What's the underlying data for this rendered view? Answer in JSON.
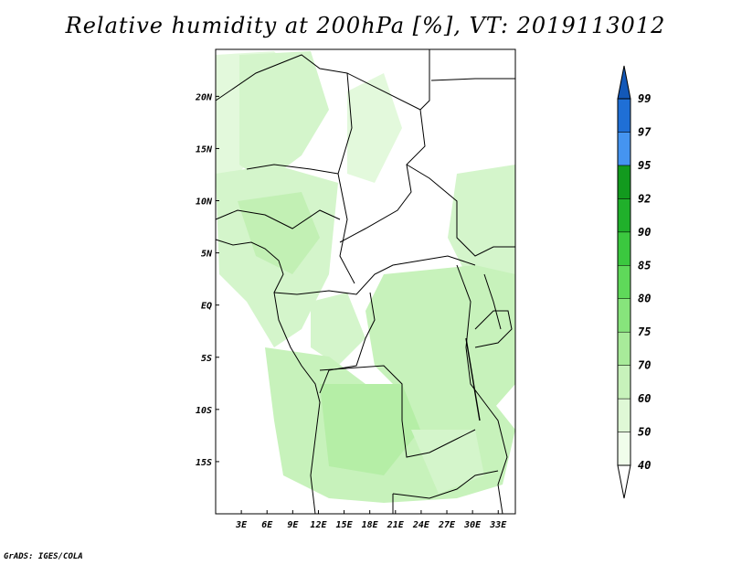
{
  "title": "Relative humidity at 200hPa [%], VT: 2019113012",
  "credit": "GrADS: IGES/COLA",
  "map": {
    "lon_ticks": [
      "3E",
      "6E",
      "9E",
      "12E",
      "15E",
      "18E",
      "21E",
      "24E",
      "27E",
      "30E",
      "33E"
    ],
    "lat_ticks": [
      "20N",
      "15N",
      "10N",
      "5N",
      "EQ",
      "5S",
      "10S",
      "15S"
    ],
    "lon_range": [
      0,
      35
    ],
    "lat_range": [
      -20,
      24.5
    ]
  },
  "colorbar": {
    "levels": [
      "40",
      "50",
      "60",
      "70",
      "75",
      "80",
      "85",
      "90",
      "92",
      "95",
      "97",
      "99"
    ],
    "colors": [
      "#ffffff",
      "#f0fdeb",
      "#dff8d6",
      "#c7f2bb",
      "#a8eb9a",
      "#87e47c",
      "#5fd95a",
      "#3bc83f",
      "#20b02b",
      "#129a1e",
      "#4594f0",
      "#1f6fd6",
      "#1358b8"
    ]
  }
}
